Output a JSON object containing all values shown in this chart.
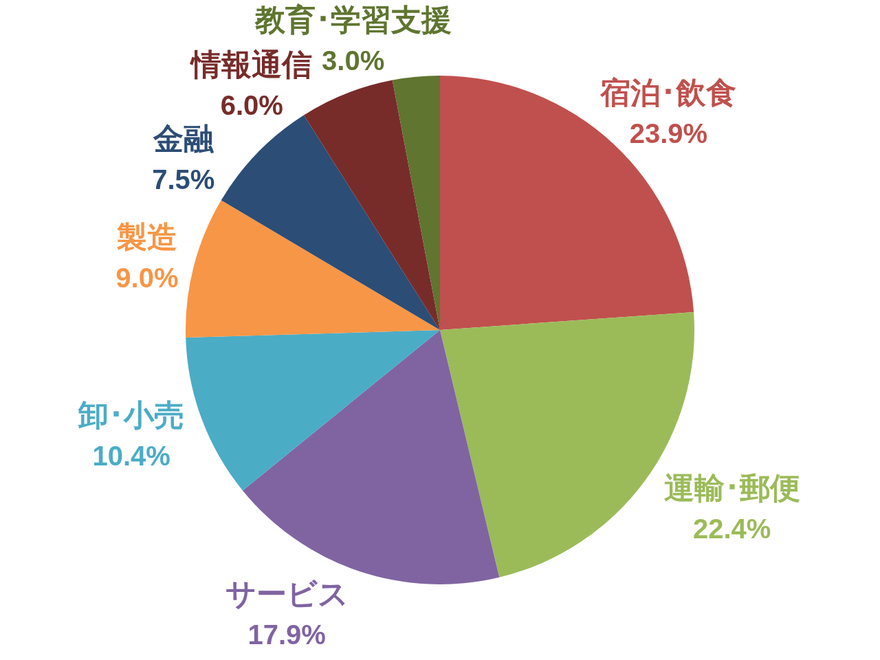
{
  "chart_data": {
    "type": "pie",
    "categories": [
      "宿泊･飲食",
      "運輸･郵便",
      "サービス",
      "卸･小売",
      "製造",
      "金融",
      "情報通信",
      "教育･学習支援"
    ],
    "values": [
      23.9,
      22.4,
      17.9,
      10.4,
      9.0,
      7.5,
      6.0,
      3.0
    ],
    "colors": [
      "#c0504d",
      "#9bbb59",
      "#8064a2",
      "#4bacc6",
      "#f79646",
      "#2c4d75",
      "#772c2a",
      "#5f7530"
    ],
    "value_labels": [
      "23.9%",
      "22.4%",
      "17.9%",
      "10.4%",
      "9.0%",
      "7.5%",
      "6.0%",
      "3.0%"
    ],
    "legend": false
  }
}
